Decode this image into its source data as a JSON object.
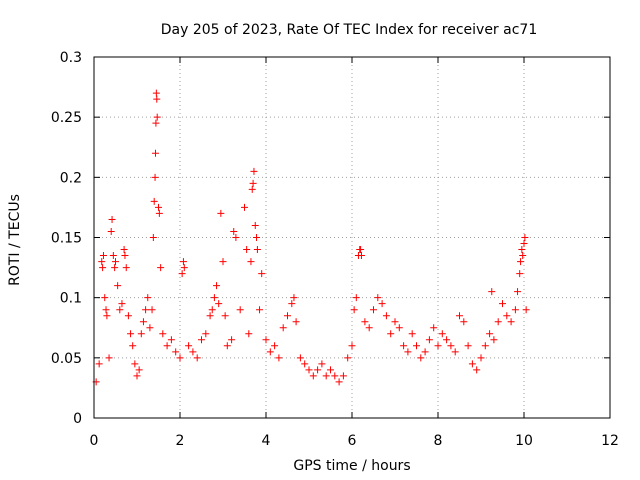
{
  "chart_data": {
    "type": "scatter",
    "title": "Day 205 of 2023, Rate Of TEC Index for receiver ac71",
    "xlabel": "GPS time / hours",
    "ylabel": "ROTI / TECUs",
    "xlim": [
      0,
      12
    ],
    "ylim": [
      0,
      0.3
    ],
    "xticks": [
      0,
      2,
      4,
      6,
      8,
      10,
      12
    ],
    "xtick_labels": [
      "0",
      "2",
      "4",
      "6",
      "8",
      "10",
      "12"
    ],
    "yticks": [
      0,
      0.05,
      0.1,
      0.15,
      0.2,
      0.25,
      0.3
    ],
    "ytick_labels": [
      "0",
      "0.05",
      "0.1",
      "0.15",
      "0.2",
      "0.25",
      "0.3"
    ],
    "grid": true,
    "marker": "+",
    "color": "#ff0000",
    "series": [
      {
        "name": "ROTI",
        "points": [
          [
            0.05,
            0.03
          ],
          [
            0.12,
            0.045
          ],
          [
            0.18,
            0.13
          ],
          [
            0.2,
            0.125
          ],
          [
            0.22,
            0.135
          ],
          [
            0.25,
            0.1
          ],
          [
            0.28,
            0.09
          ],
          [
            0.3,
            0.085
          ],
          [
            0.35,
            0.05
          ],
          [
            0.4,
            0.155
          ],
          [
            0.42,
            0.165
          ],
          [
            0.45,
            0.135
          ],
          [
            0.48,
            0.125
          ],
          [
            0.5,
            0.13
          ],
          [
            0.55,
            0.11
          ],
          [
            0.6,
            0.09
          ],
          [
            0.65,
            0.095
          ],
          [
            0.7,
            0.14
          ],
          [
            0.72,
            0.135
          ],
          [
            0.75,
            0.125
          ],
          [
            0.8,
            0.085
          ],
          [
            0.85,
            0.07
          ],
          [
            0.9,
            0.06
          ],
          [
            0.95,
            0.045
          ],
          [
            1.0,
            0.035
          ],
          [
            1.05,
            0.04
          ],
          [
            1.1,
            0.07
          ],
          [
            1.15,
            0.08
          ],
          [
            1.2,
            0.09
          ],
          [
            1.25,
            0.1
          ],
          [
            1.3,
            0.075
          ],
          [
            1.35,
            0.09
          ],
          [
            1.38,
            0.15
          ],
          [
            1.4,
            0.18
          ],
          [
            1.42,
            0.2
          ],
          [
            1.43,
            0.22
          ],
          [
            1.44,
            0.245
          ],
          [
            1.45,
            0.27
          ],
          [
            1.46,
            0.265
          ],
          [
            1.47,
            0.25
          ],
          [
            1.5,
            0.175
          ],
          [
            1.52,
            0.17
          ],
          [
            1.55,
            0.125
          ],
          [
            1.6,
            0.07
          ],
          [
            1.7,
            0.06
          ],
          [
            1.8,
            0.065
          ],
          [
            1.9,
            0.055
          ],
          [
            2.0,
            0.05
          ],
          [
            2.05,
            0.12
          ],
          [
            2.08,
            0.13
          ],
          [
            2.1,
            0.125
          ],
          [
            2.2,
            0.06
          ],
          [
            2.3,
            0.055
          ],
          [
            2.4,
            0.05
          ],
          [
            2.5,
            0.065
          ],
          [
            2.6,
            0.07
          ],
          [
            2.7,
            0.085
          ],
          [
            2.75,
            0.09
          ],
          [
            2.8,
            0.1
          ],
          [
            2.85,
            0.11
          ],
          [
            2.9,
            0.095
          ],
          [
            2.95,
            0.17
          ],
          [
            3.0,
            0.13
          ],
          [
            3.05,
            0.085
          ],
          [
            3.1,
            0.06
          ],
          [
            3.2,
            0.065
          ],
          [
            3.25,
            0.155
          ],
          [
            3.3,
            0.15
          ],
          [
            3.4,
            0.09
          ],
          [
            3.5,
            0.175
          ],
          [
            3.55,
            0.14
          ],
          [
            3.6,
            0.07
          ],
          [
            3.65,
            0.13
          ],
          [
            3.68,
            0.19
          ],
          [
            3.7,
            0.195
          ],
          [
            3.72,
            0.205
          ],
          [
            3.75,
            0.16
          ],
          [
            3.78,
            0.15
          ],
          [
            3.8,
            0.14
          ],
          [
            3.85,
            0.09
          ],
          [
            3.9,
            0.12
          ],
          [
            4.0,
            0.065
          ],
          [
            4.1,
            0.055
          ],
          [
            4.2,
            0.06
          ],
          [
            4.3,
            0.05
          ],
          [
            4.4,
            0.075
          ],
          [
            4.5,
            0.085
          ],
          [
            4.6,
            0.095
          ],
          [
            4.65,
            0.1
          ],
          [
            4.7,
            0.08
          ],
          [
            4.8,
            0.05
          ],
          [
            4.9,
            0.045
          ],
          [
            5.0,
            0.04
          ],
          [
            5.1,
            0.035
          ],
          [
            5.2,
            0.04
          ],
          [
            5.3,
            0.045
          ],
          [
            5.4,
            0.035
          ],
          [
            5.5,
            0.04
          ],
          [
            5.6,
            0.035
          ],
          [
            5.7,
            0.03
          ],
          [
            5.8,
            0.035
          ],
          [
            5.9,
            0.05
          ],
          [
            6.0,
            0.06
          ],
          [
            6.05,
            0.09
          ],
          [
            6.1,
            0.1
          ],
          [
            6.15,
            0.135
          ],
          [
            6.18,
            0.14
          ],
          [
            6.2,
            0.14
          ],
          [
            6.22,
            0.135
          ],
          [
            6.3,
            0.08
          ],
          [
            6.4,
            0.075
          ],
          [
            6.5,
            0.09
          ],
          [
            6.6,
            0.1
          ],
          [
            6.7,
            0.095
          ],
          [
            6.8,
            0.085
          ],
          [
            6.9,
            0.07
          ],
          [
            7.0,
            0.08
          ],
          [
            7.1,
            0.075
          ],
          [
            7.2,
            0.06
          ],
          [
            7.3,
            0.055
          ],
          [
            7.4,
            0.07
          ],
          [
            7.5,
            0.06
          ],
          [
            7.6,
            0.05
          ],
          [
            7.7,
            0.055
          ],
          [
            7.8,
            0.065
          ],
          [
            7.9,
            0.075
          ],
          [
            8.0,
            0.06
          ],
          [
            8.1,
            0.07
          ],
          [
            8.2,
            0.065
          ],
          [
            8.3,
            0.06
          ],
          [
            8.4,
            0.055
          ],
          [
            8.5,
            0.085
          ],
          [
            8.6,
            0.08
          ],
          [
            8.7,
            0.06
          ],
          [
            8.8,
            0.045
          ],
          [
            8.9,
            0.04
          ],
          [
            9.0,
            0.05
          ],
          [
            9.1,
            0.06
          ],
          [
            9.2,
            0.07
          ],
          [
            9.25,
            0.105
          ],
          [
            9.3,
            0.065
          ],
          [
            9.4,
            0.08
          ],
          [
            9.5,
            0.095
          ],
          [
            9.6,
            0.085
          ],
          [
            9.7,
            0.08
          ],
          [
            9.8,
            0.09
          ],
          [
            9.85,
            0.105
          ],
          [
            9.9,
            0.12
          ],
          [
            9.92,
            0.13
          ],
          [
            9.95,
            0.14
          ],
          [
            9.97,
            0.135
          ],
          [
            10.0,
            0.145
          ],
          [
            10.02,
            0.15
          ],
          [
            10.05,
            0.09
          ]
        ]
      }
    ]
  }
}
